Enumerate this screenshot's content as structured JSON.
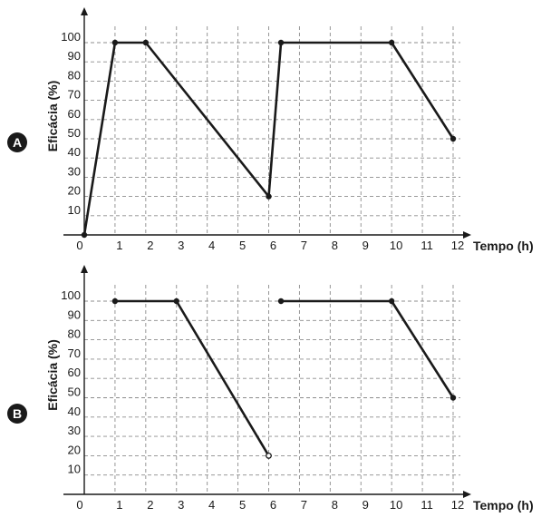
{
  "chart_data": [
    {
      "type": "line",
      "panel_label": "A",
      "xlabel": "Tempo (h)",
      "ylabel": "Eficácia (%)",
      "xlim": [
        0,
        12
      ],
      "ylim": [
        0,
        100
      ],
      "x_ticks": [
        "0",
        "1",
        "2",
        "3",
        "4",
        "5",
        "6",
        "7",
        "8",
        "9",
        "10",
        "11",
        "12"
      ],
      "y_ticks": [
        "10",
        "20",
        "30",
        "40",
        "50",
        "60",
        "70",
        "80",
        "90",
        "100"
      ],
      "grid": true,
      "segments": [
        {
          "points": [
            {
              "x": 0,
              "y": 0,
              "marker": "filled"
            },
            {
              "x": 1,
              "y": 100,
              "marker": "filled"
            },
            {
              "x": 2,
              "y": 100,
              "marker": "filled"
            },
            {
              "x": 6,
              "y": 20,
              "marker": "filled"
            },
            {
              "x": 6.4,
              "y": 100,
              "marker": "filled"
            },
            {
              "x": 10,
              "y": 100,
              "marker": "filled"
            },
            {
              "x": 12,
              "y": 50,
              "marker": "filled"
            }
          ]
        }
      ]
    },
    {
      "type": "line",
      "panel_label": "B",
      "xlabel": "Tempo (h)",
      "ylabel": "Eficácia (%)",
      "xlim": [
        0,
        12
      ],
      "ylim": [
        0,
        100
      ],
      "x_ticks": [
        "0",
        "1",
        "2",
        "3",
        "4",
        "5",
        "6",
        "7",
        "8",
        "9",
        "10",
        "11",
        "12"
      ],
      "y_ticks": [
        "10",
        "20",
        "30",
        "40",
        "50",
        "60",
        "70",
        "80",
        "90",
        "100"
      ],
      "grid": true,
      "segments": [
        {
          "points": [
            {
              "x": 1,
              "y": 100,
              "marker": "filled"
            },
            {
              "x": 3,
              "y": 100,
              "marker": "filled"
            },
            {
              "x": 6,
              "y": 20,
              "marker": "open"
            }
          ]
        },
        {
          "points": [
            {
              "x": 6.4,
              "y": 100,
              "marker": "filled"
            },
            {
              "x": 10,
              "y": 100,
              "marker": "filled"
            },
            {
              "x": 12,
              "y": 50,
              "marker": "filled"
            }
          ]
        }
      ]
    }
  ],
  "colors": {
    "line": "#1a1a1a",
    "grid": "#8c8c8c",
    "badge": "#1a1a1a"
  }
}
